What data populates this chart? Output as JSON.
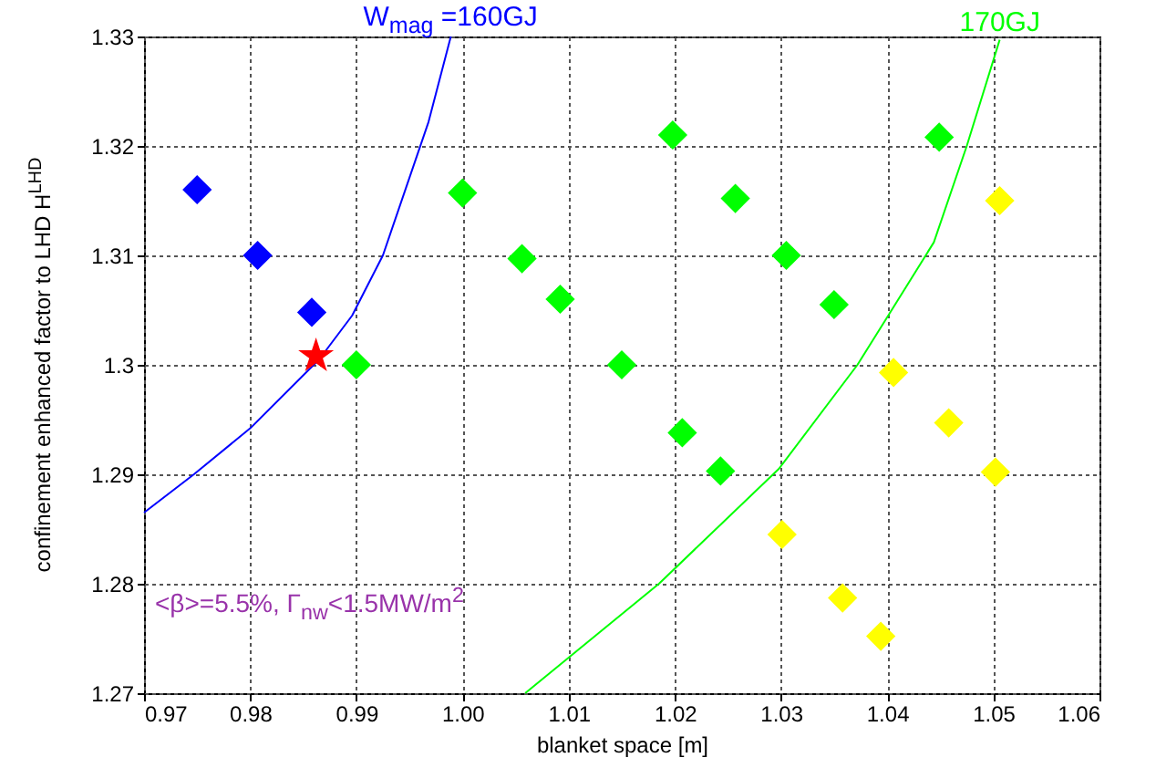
{
  "chart_data": {
    "type": "scatter",
    "xlabel": "blanket space [m]",
    "ylabel": "confinement enhanced factor to LHD  H$^{LHD}$",
    "xlim": [
      0.97,
      1.06
    ],
    "xticks": [
      0.97,
      0.98,
      0.99,
      {
        "value": 1,
        "label": "1.00"
      },
      1.01,
      1.02,
      1.03,
      1.04,
      1.05,
      1.06
    ],
    "ylim": [
      1.27,
      1.33
    ],
    "yticks": [
      1.27,
      1.28,
      1.29,
      1.3,
      1.31,
      1.32,
      1.33
    ],
    "grid": true,
    "annotations": [
      "<β>=5.5%,  Γ$_{nw}$<1.5MW/m$^{2}$"
    ],
    "series": [
      {
        "type": "line",
        "name": "W$_{mag}$ =160GJ",
        "color": "#0000ff",
        "marker": "none",
        "line_style": "solid",
        "x": [
          0.97,
          0.9747,
          0.98,
          0.9865,
          0.9896,
          0.9925,
          0.9968,
          0.9989
        ],
        "values": [
          1.2865,
          1.29,
          1.2942,
          1.3005,
          1.3045,
          1.31,
          1.3222,
          1.33
        ]
      },
      {
        "type": "line",
        "name": "170GJ",
        "color": "#00ff00",
        "marker": "none",
        "line_style": "solid",
        "x": [
          1.0059,
          1.0185,
          1.0298,
          1.0372,
          1.0401,
          1.0444,
          1.0475,
          1.0506
        ],
        "values": [
          1.27,
          1.28,
          1.2905,
          1.3,
          1.3045,
          1.3112,
          1.32,
          1.3297
        ]
      },
      {
        "color": "#0000ff",
        "marker": "diamond",
        "x": [
          0.975,
          0.9807,
          0.9858
        ],
        "values": [
          1.316,
          1.31,
          1.3048
        ]
      },
      {
        "color": "#00ff00",
        "marker": "diamond",
        "x": [
          0.99,
          1.0,
          1.0056,
          1.0092,
          1.015,
          1.0198,
          1.0207,
          1.0243,
          1.0257,
          1.0305,
          1.035,
          1.0449
        ],
        "values": [
          1.3,
          1.3157,
          1.3097,
          1.306,
          1.3,
          1.321,
          1.2938,
          1.2903,
          1.3152,
          1.31,
          1.3055,
          1.3208
        ]
      },
      {
        "color": "#ffff00",
        "marker": "diamond",
        "x": [
          1.0301,
          1.0358,
          1.0394,
          1.0406,
          1.0458,
          1.0502,
          1.0506
        ],
        "values": [
          1.2845,
          1.2787,
          1.2752,
          1.2993,
          1.2947,
          1.2902,
          1.315
        ]
      },
      {
        "color": "#ff0000",
        "marker": "star",
        "x": [
          0.9862
        ],
        "values": [
          1.3008
        ]
      }
    ]
  }
}
